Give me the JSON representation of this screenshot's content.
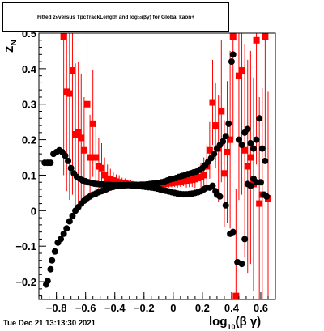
{
  "title": "Fitted z_{N} versus TpcTrackLength and log_{10}(βγ) for Global kaon+",
  "title_parts": {
    "prefix": "Fitted  z",
    "sub1": "N",
    "middle": "  versus TpcTrackLength and log",
    "sub2": "10",
    "suffix": "(βγ) for Global kaon+"
  },
  "timestamp": "Tue Dec 21 13:13:30 2021",
  "chart_data": {
    "type": "scatter",
    "title": "Fitted z_{N} versus TpcTrackLength and log_{10}(βγ) for Global kaon+",
    "xlabel": "log10(βγ)",
    "xlabel_main": "log",
    "xlabel_sub": "10",
    "xlabel_rest": "(β γ)",
    "ylabel_main": "z",
    "ylabel_sub": "N",
    "xlim": [
      -0.92,
      0.7
    ],
    "ylim": [
      -0.25,
      0.5
    ],
    "x_ticks": [
      -0.8,
      -0.6,
      -0.4,
      -0.2,
      0,
      0.2,
      0.4,
      0.6
    ],
    "x_tick_labels": [
      "−0.8",
      "−0.6",
      "−0.4",
      "−0.2",
      "0",
      "0.2",
      "0.4",
      "0.6"
    ],
    "y_ticks": [
      -0.2,
      -0.1,
      0,
      0.1,
      0.2,
      0.3,
      0.4,
      0.5
    ],
    "y_tick_labels": [
      "−0.2",
      "−0.1",
      "0",
      "0.1",
      "0.2",
      "0.3",
      "0.4",
      "0.5"
    ],
    "grid": false,
    "colors": {
      "black_series": "#000000",
      "red_series": "#ff0000"
    },
    "series": [
      {
        "marker": "circle",
        "color": "#000000",
        "points": [
          [
            -0.87,
            -0.208
          ],
          [
            -0.86,
            -0.198
          ],
          [
            -0.84,
            -0.165
          ],
          [
            -0.83,
            -0.14
          ],
          [
            -0.81,
            -0.115
          ],
          [
            -0.79,
            -0.09
          ],
          [
            -0.77,
            -0.08
          ],
          [
            -0.75,
            -0.065
          ],
          [
            -0.73,
            -0.05
          ],
          [
            -0.71,
            -0.03
          ],
          [
            -0.69,
            -0.015
          ],
          [
            -0.67,
            0.0
          ],
          [
            -0.65,
            0.01
          ],
          [
            -0.63,
            0.02
          ],
          [
            -0.61,
            0.028
          ],
          [
            -0.59,
            0.035
          ],
          [
            -0.57,
            0.04
          ],
          [
            -0.55,
            0.045
          ],
          [
            -0.53,
            0.048
          ],
          [
            -0.51,
            0.052
          ],
          [
            -0.49,
            0.055
          ],
          [
            -0.47,
            0.058
          ],
          [
            -0.45,
            0.062
          ],
          [
            -0.43,
            0.065
          ],
          [
            -0.41,
            0.067
          ],
          [
            -0.39,
            0.069
          ],
          [
            -0.37,
            0.07
          ],
          [
            -0.35,
            0.071
          ],
          [
            -0.33,
            0.071
          ],
          [
            -0.31,
            0.072
          ],
          [
            -0.29,
            0.071
          ],
          [
            -0.27,
            0.07
          ],
          [
            -0.25,
            0.07
          ],
          [
            -0.23,
            0.069
          ],
          [
            -0.21,
            0.068
          ],
          [
            -0.19,
            0.067
          ],
          [
            -0.17,
            0.066
          ],
          [
            -0.15,
            0.065
          ],
          [
            -0.13,
            0.064
          ],
          [
            -0.11,
            0.062
          ],
          [
            -0.09,
            0.06
          ],
          [
            -0.07,
            0.058
          ],
          [
            -0.05,
            0.056
          ],
          [
            -0.03,
            0.054
          ],
          [
            -0.01,
            0.052
          ],
          [
            0.01,
            0.05
          ],
          [
            0.03,
            0.048
          ],
          [
            0.05,
            0.047
          ],
          [
            0.07,
            0.046
          ],
          [
            0.09,
            0.046
          ],
          [
            0.11,
            0.047
          ],
          [
            0.13,
            0.048
          ],
          [
            0.15,
            0.05
          ],
          [
            0.17,
            0.052
          ],
          [
            0.19,
            0.055
          ],
          [
            0.21,
            0.06
          ],
          [
            0.23,
            0.065
          ],
          [
            0.25,
            0.065
          ],
          [
            0.27,
            0.07
          ],
          [
            0.29,
            0.055
          ],
          [
            0.3,
            0.045
          ],
          [
            0.32,
            0.04
          ],
          [
            0.36,
            0.015
          ],
          [
            0.39,
            -0.065
          ],
          [
            0.41,
            -0.06
          ],
          [
            0.44,
            -0.145
          ],
          [
            0.47,
            -0.15
          ],
          [
            0.49,
            -0.08
          ],
          [
            0.51,
            0.075
          ],
          [
            0.53,
            0.07
          ],
          [
            0.55,
            0.09
          ],
          [
            0.57,
            0.08
          ],
          [
            0.6,
            0.08
          ],
          [
            0.62,
            0.045
          ],
          [
            0.64,
            0.04
          ]
        ]
      },
      {
        "marker": "circle",
        "color": "#000000",
        "points": [
          [
            -0.88,
            0.135
          ],
          [
            -0.86,
            0.135
          ],
          [
            -0.84,
            0.135
          ],
          [
            -0.82,
            0.16
          ],
          [
            -0.8,
            0.165
          ],
          [
            -0.78,
            0.17
          ],
          [
            -0.76,
            0.165
          ],
          [
            -0.74,
            0.155
          ],
          [
            -0.72,
            0.14
          ],
          [
            -0.7,
            0.12
          ],
          [
            -0.68,
            0.105
          ],
          [
            -0.66,
            0.095
          ],
          [
            -0.64,
            0.09
          ],
          [
            -0.62,
            0.085
          ],
          [
            -0.6,
            0.083
          ],
          [
            -0.58,
            0.08
          ],
          [
            -0.56,
            0.078
          ],
          [
            -0.54,
            0.076
          ],
          [
            -0.52,
            0.075
          ],
          [
            -0.5,
            0.074
          ],
          [
            -0.48,
            0.074
          ],
          [
            -0.46,
            0.073
          ],
          [
            -0.44,
            0.073
          ],
          [
            -0.42,
            0.072
          ],
          [
            -0.4,
            0.072
          ],
          [
            -0.38,
            0.072
          ],
          [
            -0.36,
            0.072
          ],
          [
            -0.34,
            0.072
          ],
          [
            -0.32,
            0.072
          ],
          [
            -0.3,
            0.072
          ],
          [
            -0.28,
            0.072
          ],
          [
            -0.26,
            0.072
          ],
          [
            -0.24,
            0.072
          ],
          [
            -0.22,
            0.073
          ],
          [
            -0.2,
            0.073
          ],
          [
            -0.18,
            0.074
          ],
          [
            -0.16,
            0.075
          ],
          [
            -0.14,
            0.076
          ],
          [
            -0.12,
            0.077
          ],
          [
            -0.1,
            0.078
          ],
          [
            -0.08,
            0.08
          ],
          [
            -0.06,
            0.082
          ],
          [
            -0.04,
            0.085
          ],
          [
            -0.02,
            0.088
          ],
          [
            0.0,
            0.09
          ],
          [
            0.02,
            0.092
          ],
          [
            0.04,
            0.095
          ],
          [
            0.06,
            0.098
          ],
          [
            0.08,
            0.1
          ],
          [
            0.1,
            0.103
          ],
          [
            0.12,
            0.105
          ],
          [
            0.14,
            0.108
          ],
          [
            0.16,
            0.11
          ],
          [
            0.18,
            0.115
          ],
          [
            0.2,
            0.12
          ],
          [
            0.22,
            0.128
          ],
          [
            0.24,
            0.138
          ],
          [
            0.26,
            0.148
          ],
          [
            0.28,
            0.16
          ],
          [
            0.3,
            0.175
          ],
          [
            0.32,
            0.185
          ],
          [
            0.34,
            0.195
          ],
          [
            0.36,
            0.21
          ],
          [
            0.38,
            0.245
          ],
          [
            0.4,
            0.42
          ],
          [
            0.41,
            0.44
          ],
          [
            0.45,
            0.2
          ],
          [
            0.47,
            0.185
          ],
          [
            0.49,
            0.22
          ],
          [
            0.51,
            0.23
          ],
          [
            0.53,
            0.19
          ],
          [
            0.55,
            0.175
          ],
          [
            0.57,
            0.2
          ],
          [
            0.59,
            0.26
          ],
          [
            0.61,
            0.175
          ],
          [
            0.63,
            0.14
          ]
        ]
      },
      {
        "marker": "square",
        "color": "#ff0000",
        "points": [
          [
            -0.75,
            0.5,
            0.4
          ],
          [
            -0.73,
            0.335,
            0.28
          ],
          [
            -0.71,
            0.33,
            0.3
          ],
          [
            -0.69,
            0.395,
            0.35
          ],
          [
            -0.67,
            0.215,
            0.2
          ],
          [
            -0.65,
            0.22,
            0.2
          ],
          [
            -0.63,
            0.205,
            0.18
          ],
          [
            -0.61,
            0.17,
            0.15
          ],
          [
            -0.59,
            0.3,
            0.2
          ],
          [
            -0.57,
            0.15,
            0.12
          ],
          [
            -0.55,
            0.245,
            0.15
          ],
          [
            -0.53,
            0.15,
            0.1
          ],
          [
            -0.51,
            0.125,
            0.08
          ],
          [
            -0.49,
            0.12,
            0.07
          ],
          [
            -0.47,
            0.1,
            0.05
          ],
          [
            -0.45,
            0.09,
            0.04
          ],
          [
            -0.43,
            0.088,
            0.03
          ],
          [
            -0.41,
            0.085,
            0.025
          ],
          [
            -0.39,
            0.082,
            0.02
          ],
          [
            -0.37,
            0.08,
            0.02
          ],
          [
            -0.35,
            0.078,
            0.015
          ],
          [
            -0.33,
            0.076,
            0.015
          ],
          [
            -0.31,
            0.075,
            0.012
          ],
          [
            -0.29,
            0.074,
            0.012
          ],
          [
            -0.27,
            0.073,
            0.01
          ],
          [
            -0.25,
            0.072,
            0.01
          ],
          [
            -0.23,
            0.072,
            0.01
          ],
          [
            -0.21,
            0.072,
            0.01
          ],
          [
            -0.19,
            0.072,
            0.01
          ],
          [
            -0.17,
            0.072,
            0.01
          ],
          [
            -0.15,
            0.072,
            0.01
          ],
          [
            -0.13,
            0.072,
            0.01
          ],
          [
            -0.11,
            0.073,
            0.01
          ],
          [
            -0.09,
            0.074,
            0.01
          ],
          [
            -0.07,
            0.075,
            0.01
          ],
          [
            -0.05,
            0.076,
            0.012
          ],
          [
            -0.03,
            0.077,
            0.012
          ],
          [
            -0.01,
            0.078,
            0.012
          ],
          [
            0.01,
            0.079,
            0.012
          ],
          [
            0.03,
            0.08,
            0.015
          ],
          [
            0.05,
            0.082,
            0.015
          ],
          [
            0.07,
            0.084,
            0.015
          ],
          [
            0.09,
            0.085,
            0.02
          ],
          [
            0.11,
            0.086,
            0.02
          ],
          [
            0.13,
            0.087,
            0.02
          ],
          [
            0.15,
            0.089,
            0.025
          ],
          [
            0.17,
            0.092,
            0.03
          ],
          [
            0.19,
            0.095,
            0.04
          ],
          [
            0.21,
            0.1,
            0.05
          ],
          [
            0.23,
            0.125,
            0.06
          ],
          [
            0.25,
            0.17,
            0.08
          ],
          [
            0.27,
            0.305,
            0.12
          ],
          [
            0.29,
            0.24,
            0.12
          ],
          [
            0.31,
            0.175,
            0.15
          ],
          [
            0.33,
            0.28,
            0.2
          ],
          [
            0.35,
            0.105,
            0.15
          ],
          [
            0.37,
            0.165,
            0.2
          ],
          [
            0.39,
            0.2,
            0.25
          ],
          [
            0.41,
            0.5,
            0.3
          ],
          [
            0.43,
            -0.24,
            0.3
          ],
          [
            0.45,
            0.38,
            0.35
          ],
          [
            0.47,
            0.395,
            0.35
          ],
          [
            0.49,
            0.17,
            0.3
          ],
          [
            0.51,
            0.125,
            0.3
          ],
          [
            0.53,
            0.15,
            0.3
          ],
          [
            0.55,
            0.075,
            0.3
          ],
          [
            0.57,
            0.48,
            0.35
          ],
          [
            0.59,
            0.02,
            0.3
          ],
          [
            0.61,
            0.045,
            0.3
          ],
          [
            0.63,
            0.5,
            0.35
          ],
          [
            0.65,
            0.035,
            0.3
          ]
        ]
      }
    ]
  }
}
